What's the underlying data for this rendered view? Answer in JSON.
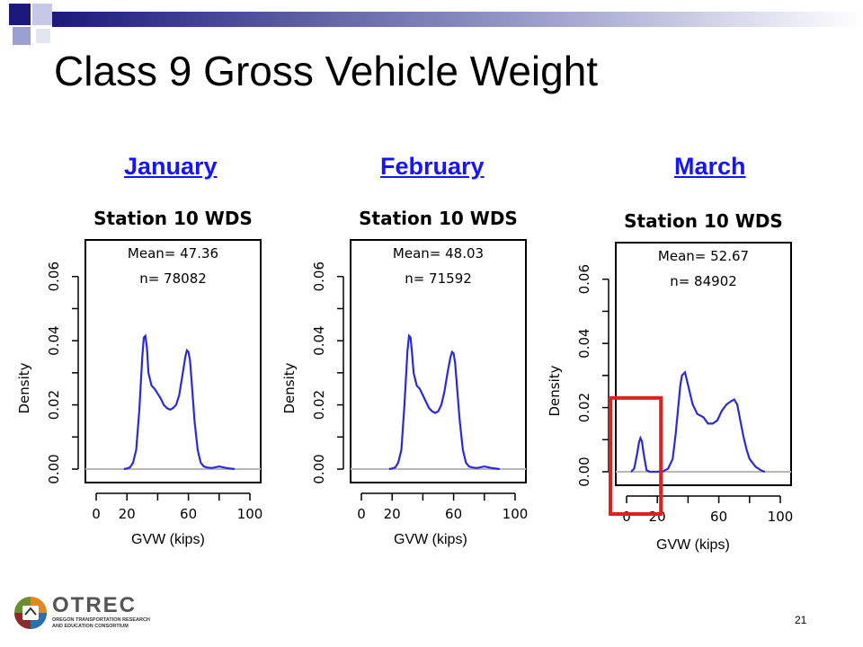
{
  "slide": {
    "title": "Class 9 Gross Vehicle Weight",
    "page_number": "21",
    "months": [
      "January",
      "February",
      "March"
    ],
    "x_caption": "GVW (kips)"
  },
  "logo": {
    "name": "OTREC",
    "subtitle_line1": "OREGON TRANSPORTATION RESEARCH",
    "subtitle_line2": "AND EDUCATION CONSORTIUM"
  },
  "colors": {
    "title_bar_dark": "#1b1a7a",
    "link_blue": "#1414ff",
    "curve_blue": "#2a2ad8",
    "highlight_red": "#e02020",
    "baseline_gray": "#b8b8b8"
  },
  "chart_data": [
    {
      "type": "line",
      "title": "Station 10 WDS",
      "annotations": [
        "Mean= 47.36",
        "n= 78082"
      ],
      "ylabel": "Density",
      "xlim": [
        0,
        100
      ],
      "ylim": [
        0,
        0.07
      ],
      "x_ticks": [
        0,
        20,
        60,
        100
      ],
      "y_ticks": [
        "0.00",
        "0.02",
        "0.04",
        "0.06"
      ],
      "x": [
        18,
        20,
        22,
        24,
        26,
        28,
        30,
        31,
        32,
        33,
        34,
        36,
        38,
        40,
        42,
        44,
        46,
        48,
        50,
        52,
        54,
        56,
        58,
        59,
        60,
        61,
        62,
        64,
        66,
        68,
        70,
        72,
        75,
        80,
        85,
        90
      ],
      "y": [
        0.0,
        0.0002,
        0.0005,
        0.002,
        0.006,
        0.018,
        0.035,
        0.041,
        0.0415,
        0.038,
        0.03,
        0.026,
        0.025,
        0.0235,
        0.022,
        0.02,
        0.019,
        0.0185,
        0.019,
        0.02,
        0.023,
        0.029,
        0.035,
        0.037,
        0.0365,
        0.034,
        0.028,
        0.015,
        0.006,
        0.002,
        0.0008,
        0.0005,
        0.0003,
        0.0008,
        0.0003,
        0.0
      ],
      "highlight_box": null
    },
    {
      "type": "line",
      "title": "Station 10 WDS",
      "annotations": [
        "Mean= 48.03",
        "n= 71592"
      ],
      "ylabel": "Density",
      "xlim": [
        0,
        100
      ],
      "ylim": [
        0,
        0.07
      ],
      "x_ticks": [
        0,
        20,
        60,
        100
      ],
      "y_ticks": [
        "0.00",
        "0.02",
        "0.04",
        "0.06"
      ],
      "x": [
        18,
        20,
        22,
        24,
        26,
        28,
        30,
        31,
        32,
        33,
        34,
        36,
        38,
        40,
        42,
        44,
        46,
        48,
        50,
        52,
        54,
        56,
        58,
        59,
        60,
        61,
        62,
        64,
        66,
        68,
        70,
        72,
        75,
        80,
        85,
        90
      ],
      "y": [
        0.0,
        0.0002,
        0.0005,
        0.002,
        0.006,
        0.02,
        0.037,
        0.0415,
        0.041,
        0.036,
        0.03,
        0.026,
        0.025,
        0.023,
        0.021,
        0.019,
        0.018,
        0.0175,
        0.018,
        0.02,
        0.024,
        0.03,
        0.035,
        0.0365,
        0.036,
        0.033,
        0.027,
        0.015,
        0.006,
        0.002,
        0.0008,
        0.0005,
        0.0003,
        0.0008,
        0.0003,
        0.0
      ],
      "highlight_box": null
    },
    {
      "type": "line",
      "title": "Station 10 WDS",
      "annotations": [
        "Mean= 52.67",
        "n= 84902"
      ],
      "ylabel": "Density",
      "xlim": [
        0,
        100
      ],
      "ylim": [
        0,
        0.07
      ],
      "x_ticks": [
        0,
        20,
        60,
        100
      ],
      "y_ticks": [
        "0.00",
        "0.02",
        "0.04",
        "0.06"
      ],
      "x": [
        3,
        5,
        7,
        8,
        9,
        10,
        11,
        13,
        15,
        17,
        20,
        24,
        27,
        30,
        32,
        34,
        35,
        36,
        38,
        40,
        43,
        46,
        50,
        53,
        56,
        59,
        62,
        65,
        68,
        70,
        72,
        74,
        76,
        78,
        80,
        84,
        88,
        90
      ],
      "y": [
        0.0,
        0.001,
        0.006,
        0.009,
        0.0105,
        0.0095,
        0.006,
        0.0005,
        0.0,
        0.0,
        0.0,
        0.0002,
        0.001,
        0.004,
        0.012,
        0.022,
        0.027,
        0.03,
        0.031,
        0.027,
        0.021,
        0.018,
        0.017,
        0.015,
        0.015,
        0.016,
        0.019,
        0.021,
        0.022,
        0.0225,
        0.021,
        0.016,
        0.011,
        0.007,
        0.004,
        0.0015,
        0.0003,
        0.0
      ],
      "highlight_box": {
        "x_range": [
          0,
          20
        ],
        "y_range": [
          -0.007,
          0.023
        ]
      }
    }
  ]
}
